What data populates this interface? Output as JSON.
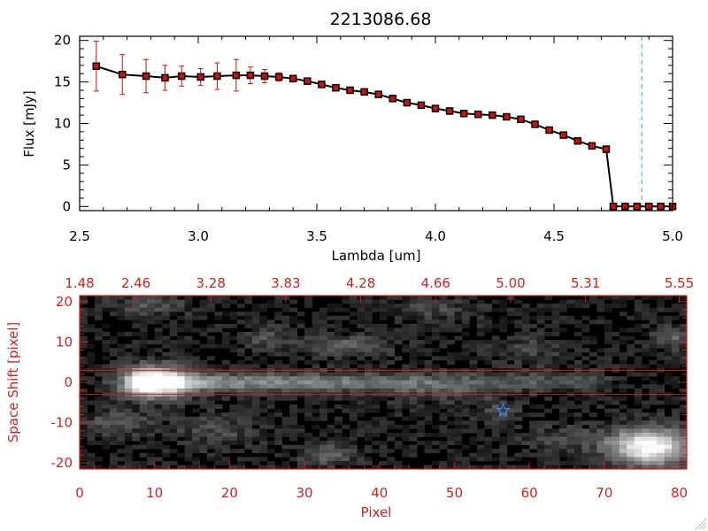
{
  "chart_data": [
    {
      "type": "scatter",
      "title": "2213086.68",
      "xlabel": "Lambda [um]",
      "ylabel": "Flux [mJy]",
      "xlim": [
        2.5,
        5.0
      ],
      "ylim": [
        -0.5,
        20.5
      ],
      "xticks": [
        2.5,
        3.0,
        3.5,
        4.0,
        4.5,
        5.0
      ],
      "xtick_labels": [
        "2.5",
        "3.0",
        "3.5",
        "4.0",
        "4.5",
        "5.0"
      ],
      "yticks": [
        0,
        5,
        10,
        15,
        20
      ],
      "ytick_labels": [
        "0",
        "5",
        "10",
        "15",
        "20"
      ],
      "vline_x": 4.87,
      "colors": {
        "line": "#000000",
        "marker": "#cc1111",
        "errorbar": "#cc1111",
        "vline": "#2aa8b8"
      },
      "series": [
        {
          "x": [
            2.57,
            2.68,
            2.78,
            2.86,
            2.93,
            3.01,
            3.08,
            3.16,
            3.22,
            3.28,
            3.34,
            3.4,
            3.46,
            3.52,
            3.58,
            3.64,
            3.7,
            3.76,
            3.82,
            3.88,
            3.94,
            4.0,
            4.06,
            4.12,
            4.18,
            4.24,
            4.3,
            4.36,
            4.42,
            4.48,
            4.54,
            4.6,
            4.66,
            4.72,
            4.75,
            4.8,
            4.85,
            4.9,
            4.95,
            5.0
          ],
          "y": [
            16.9,
            15.9,
            15.7,
            15.5,
            15.7,
            15.6,
            15.7,
            15.8,
            15.8,
            15.7,
            15.6,
            15.4,
            15.1,
            14.7,
            14.3,
            14.0,
            13.8,
            13.5,
            13.0,
            12.5,
            12.2,
            11.8,
            11.5,
            11.2,
            11.1,
            11.0,
            10.8,
            10.5,
            9.9,
            9.2,
            8.6,
            7.9,
            7.3,
            6.9,
            0,
            0,
            0,
            0,
            0,
            0
          ],
          "yerr": [
            3.0,
            2.4,
            2.0,
            1.5,
            1.2,
            1.0,
            1.6,
            1.9,
            1.0,
            0.8,
            0.5,
            0.4,
            0.3,
            0.3,
            0.3,
            0.3,
            0.3,
            0.3,
            0.3,
            0.3,
            0.3,
            0.3,
            0.3,
            0.3,
            0.3,
            0.3,
            0.3,
            0.3,
            0.3,
            0.3,
            0.3,
            0.3,
            0.3,
            0.3,
            0.2,
            0.2,
            0.2,
            0.2,
            0.2,
            0.2
          ]
        }
      ]
    },
    {
      "type": "heatmap",
      "xlabel": "Pixel",
      "ylabel": "Space Shift [pixel]",
      "xlim": [
        0,
        81
      ],
      "ylim": [
        -21.5,
        21.5
      ],
      "xticks": [
        0,
        10,
        20,
        30,
        40,
        50,
        60,
        70,
        80
      ],
      "xtick_labels": [
        "0",
        "10",
        "20",
        "30",
        "40",
        "50",
        "60",
        "70",
        "80"
      ],
      "yticks": [
        20,
        10,
        0,
        -10,
        -20
      ],
      "ytick_labels": [
        "20",
        "10",
        "0",
        "-10",
        "-20"
      ],
      "top_axis_ticks": [
        0,
        7.5,
        17.5,
        27.5,
        37.5,
        47.5,
        57.5,
        67.5,
        80
      ],
      "top_axis_labels": [
        "1.48",
        "2.46",
        "3.28",
        "3.83",
        "4.28",
        "4.66",
        "5.00",
        "5.31",
        "5.55"
      ],
      "hlines_y": [
        3,
        -3
      ],
      "star_marker": {
        "x": 56.5,
        "y": -7
      },
      "colors": {
        "axes": "#cc2222",
        "hline": "#cc2222",
        "star": "#3388ee"
      },
      "sources": [
        {
          "x": 10,
          "y": 0,
          "amp": 1.0,
          "sx": 3.0,
          "sy": 2.6
        },
        {
          "x": 76,
          "y": -16,
          "amp": 1.0,
          "sx": 3.5,
          "sy": 3.0
        },
        {
          "x": 36,
          "y": 9,
          "amp": 0.22,
          "sx": 4.0,
          "sy": 2.0
        },
        {
          "x": 25,
          "y": 11,
          "amp": 0.18,
          "sx": 2.5,
          "sy": 1.8
        },
        {
          "x": 79,
          "y": 11,
          "amp": 0.25,
          "sx": 1.8,
          "sy": 2.0
        },
        {
          "x": 5,
          "y": -10,
          "amp": 0.22,
          "sx": 3.0,
          "sy": 2.0
        },
        {
          "x": 9,
          "y": 19,
          "amp": 0.18,
          "sx": 3.5,
          "sy": 1.8
        },
        {
          "x": 33,
          "y": -18,
          "amp": 0.25,
          "sx": 2.5,
          "sy": 2.0
        },
        {
          "x": 56,
          "y": -7,
          "amp": 0.15,
          "sx": 2.0,
          "sy": 2.0
        },
        {
          "x": 18,
          "y": -12,
          "amp": 0.15,
          "sx": 4.0,
          "sy": 3.0
        },
        {
          "x": 47,
          "y": 18,
          "amp": 0.14,
          "sx": 4.0,
          "sy": 2.0
        },
        {
          "x": 65,
          "y": -14,
          "amp": 0.14,
          "sx": 4.0,
          "sy": 2.5
        },
        {
          "x": 48,
          "y": -3,
          "amp": 0.12,
          "sx": 5.0,
          "sy": 2.0
        },
        {
          "x": 60,
          "y": 8,
          "amp": 0.12,
          "sx": 4.0,
          "sy": 3.0
        }
      ],
      "trace": {
        "y_center": 0,
        "sigma": 1.6,
        "x_start": 8,
        "x_end": 70,
        "amp_start": 0.5,
        "amp_end": 0.14
      }
    }
  ]
}
